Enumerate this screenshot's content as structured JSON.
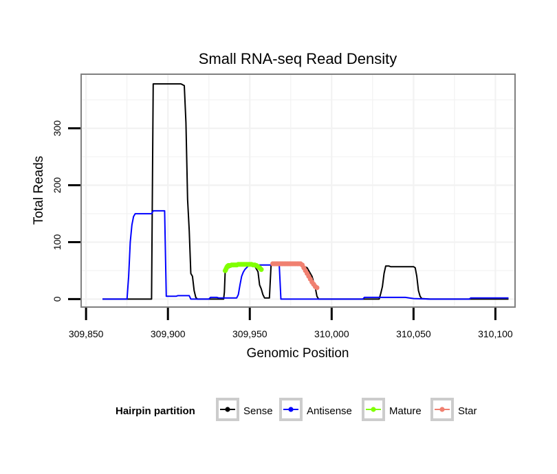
{
  "chart_data": {
    "type": "line",
    "title": "Small RNA-seq Read Density",
    "xlabel": "Genomic Position",
    "ylabel": "Total Reads",
    "xlim": [
      309847,
      310112
    ],
    "ylim": [
      -14,
      395
    ],
    "x_ticks": [
      {
        "value": 309850,
        "label": "309,850"
      },
      {
        "value": 309900,
        "label": "309,900"
      },
      {
        "value": 309950,
        "label": "309,950"
      },
      {
        "value": 310000,
        "label": "310,000"
      },
      {
        "value": 310050,
        "label": "310,050"
      },
      {
        "value": 310100,
        "label": "310,100"
      }
    ],
    "y_ticks": [
      {
        "value": 0,
        "label": "0"
      },
      {
        "value": 100,
        "label": "100"
      },
      {
        "value": 200,
        "label": "200"
      },
      {
        "value": 300,
        "label": "300"
      }
    ],
    "grid": true,
    "legend": {
      "title": "Hairpin partition",
      "position": "bottom",
      "entries": [
        "Sense",
        "Antisense",
        "Mature",
        "Star"
      ]
    },
    "series": [
      {
        "name": "Sense",
        "color": "#000000",
        "style": "line",
        "points": [
          [
            309860,
            0
          ],
          [
            309890,
            0
          ],
          [
            309891,
            378
          ],
          [
            309908,
            378
          ],
          [
            309910,
            375
          ],
          [
            309911,
            310
          ],
          [
            309912,
            175
          ],
          [
            309913,
            120
          ],
          [
            309914,
            45
          ],
          [
            309915,
            40
          ],
          [
            309916,
            15
          ],
          [
            309917,
            3
          ],
          [
            309918,
            0
          ],
          [
            309934,
            0
          ],
          [
            309934.5,
            12
          ],
          [
            309935,
            50
          ],
          [
            309937,
            55
          ],
          [
            309940,
            58
          ],
          [
            309945,
            60
          ],
          [
            309950,
            60
          ],
          [
            309953,
            58
          ],
          [
            309955,
            48
          ],
          [
            309956,
            25
          ],
          [
            309957,
            18
          ],
          [
            309958,
            8
          ],
          [
            309959,
            2
          ],
          [
            309962,
            2
          ],
          [
            309963,
            60
          ],
          [
            309967,
            62
          ],
          [
            309980,
            62
          ],
          [
            309985,
            55
          ],
          [
            309988,
            40
          ],
          [
            309990,
            20
          ],
          [
            309991,
            5
          ],
          [
            309992,
            0
          ],
          [
            310029,
            0
          ],
          [
            310030,
            10
          ],
          [
            310031,
            22
          ],
          [
            310032,
            45
          ],
          [
            310033,
            58
          ],
          [
            310035,
            58
          ],
          [
            310036,
            57
          ],
          [
            310050,
            57
          ],
          [
            310051,
            55
          ],
          [
            310052,
            40
          ],
          [
            310053,
            15
          ],
          [
            310054,
            5
          ],
          [
            310055,
            1
          ],
          [
            310060,
            0
          ],
          [
            310108,
            0
          ]
        ]
      },
      {
        "name": "Antisense",
        "color": "#0000ff",
        "style": "line",
        "points": [
          [
            309860,
            0
          ],
          [
            309875,
            0
          ],
          [
            309876,
            40
          ],
          [
            309877,
            100
          ],
          [
            309878,
            130
          ],
          [
            309879,
            145
          ],
          [
            309880,
            150
          ],
          [
            309890,
            150
          ],
          [
            309891,
            155
          ],
          [
            309898,
            155
          ],
          [
            309899,
            5
          ],
          [
            309905,
            5
          ],
          [
            309906,
            6
          ],
          [
            309913,
            6
          ],
          [
            309914,
            0
          ],
          [
            309925,
            0
          ],
          [
            309926,
            3
          ],
          [
            309930,
            3
          ],
          [
            309931,
            2
          ],
          [
            309942,
            2
          ],
          [
            309943,
            8
          ],
          [
            309944,
            25
          ],
          [
            309945,
            40
          ],
          [
            309946,
            47
          ],
          [
            309947,
            52
          ],
          [
            309948,
            55
          ],
          [
            309949,
            58
          ],
          [
            309950,
            60
          ],
          [
            309968,
            60
          ],
          [
            309969,
            0
          ],
          [
            310019,
            0
          ],
          [
            310020,
            3
          ],
          [
            310045,
            3
          ],
          [
            310050,
            1
          ],
          [
            310060,
            0
          ],
          [
            310084,
            0
          ],
          [
            310085,
            2
          ],
          [
            310108,
            2
          ]
        ]
      },
      {
        "name": "Mature",
        "color": "#80ff00",
        "style": "points",
        "points": [
          [
            309935,
            50
          ],
          [
            309935.5,
            53
          ],
          [
            309936,
            56
          ],
          [
            309936.5,
            58
          ],
          [
            309937,
            59
          ],
          [
            309938,
            59
          ],
          [
            309939,
            60
          ],
          [
            309940,
            60
          ],
          [
            309941,
            60
          ],
          [
            309942,
            60
          ],
          [
            309943,
            61
          ],
          [
            309944,
            61
          ],
          [
            309945,
            61
          ],
          [
            309946,
            61
          ],
          [
            309947,
            61
          ],
          [
            309948,
            61
          ],
          [
            309949,
            61
          ],
          [
            309950,
            61
          ],
          [
            309951,
            61
          ],
          [
            309952,
            60
          ],
          [
            309953,
            60
          ],
          [
            309954,
            59
          ],
          [
            309955,
            57
          ],
          [
            309956,
            55
          ],
          [
            309957,
            52
          ]
        ]
      },
      {
        "name": "Star",
        "color": "#f08070",
        "style": "points",
        "points": [
          [
            309964,
            62
          ],
          [
            309965,
            62
          ],
          [
            309966,
            62
          ],
          [
            309967,
            62
          ],
          [
            309968,
            62
          ],
          [
            309969,
            62
          ],
          [
            309970,
            62
          ],
          [
            309971,
            62
          ],
          [
            309972,
            62
          ],
          [
            309973,
            62
          ],
          [
            309974,
            62
          ],
          [
            309975,
            62
          ],
          [
            309976,
            62
          ],
          [
            309977,
            62
          ],
          [
            309978,
            62
          ],
          [
            309979,
            62
          ],
          [
            309980,
            62
          ],
          [
            309981,
            62
          ],
          [
            309982,
            60
          ],
          [
            309983,
            55
          ],
          [
            309984,
            50
          ],
          [
            309985,
            45
          ],
          [
            309986,
            40
          ],
          [
            309987,
            35
          ],
          [
            309988,
            30
          ],
          [
            309989,
            26
          ],
          [
            309990,
            22
          ],
          [
            309991,
            20
          ]
        ]
      }
    ]
  }
}
